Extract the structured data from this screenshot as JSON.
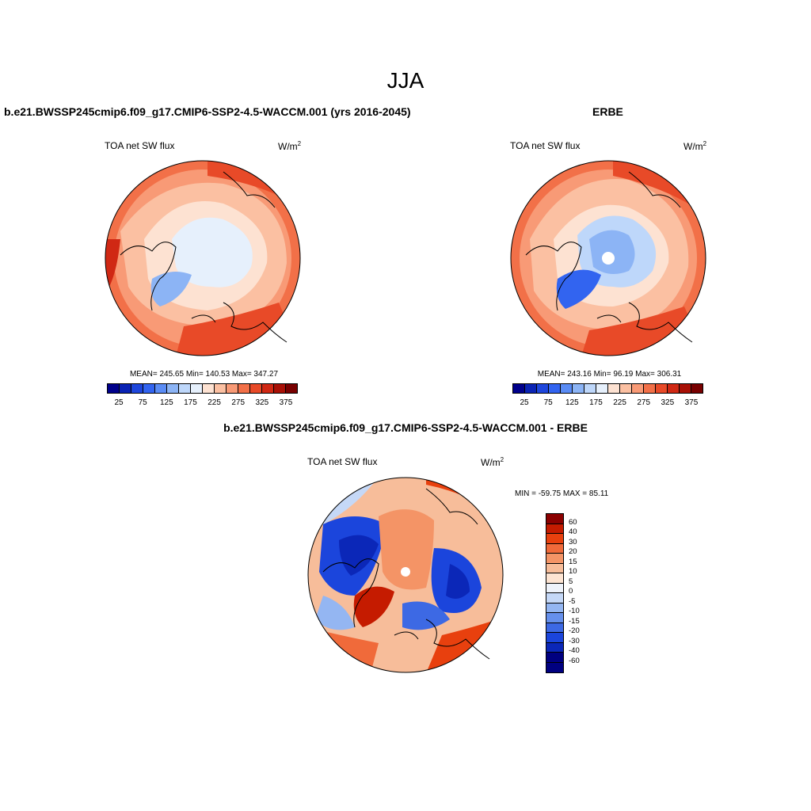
{
  "season": "JJA",
  "panels": [
    {
      "title": "b.e21.BWSSP245cmip6.f09_g17.CMIP6-SSP2-4.5-WACCM.001 (yrs 2016-2045)",
      "variable": "TOA net SW flux",
      "units_base": "W/m",
      "units_sup": "2",
      "stats": "MEAN= 245.65  Min= 140.53  Max= 347.27"
    },
    {
      "title": "ERBE",
      "variable": "TOA net SW flux",
      "units_base": "W/m",
      "units_sup": "2",
      "stats": "MEAN= 243.16  Min=  96.19  Max= 306.31"
    },
    {
      "title": "b.e21.BWSSP245cmip6.f09_g17.CMIP6-SSP2-4.5-WACCM.001 - ERBE",
      "variable": "TOA net SW flux",
      "units_base": "W/m",
      "units_sup": "2",
      "stats": "MIN = -59.75 MAX =  85.11"
    }
  ],
  "colorbar_abs": {
    "colors": [
      "#00008b",
      "#0a23b4",
      "#1e46dc",
      "#3264f0",
      "#5a8cf5",
      "#8cb4f5",
      "#bed7fa",
      "#e6f0fc",
      "#fde2d2",
      "#fbc0a2",
      "#f89a76",
      "#f27048",
      "#e84a28",
      "#d02814",
      "#a81006",
      "#780000"
    ],
    "labels": [
      "25",
      "75",
      "125",
      "175",
      "225",
      "275",
      "325",
      "375"
    ]
  },
  "colorbar_diff": {
    "colors": [
      "#8b0000",
      "#c51b00",
      "#e8400e",
      "#f06a3a",
      "#f49466",
      "#f7bd9a",
      "#fde4d2",
      "#eef3fb",
      "#c5d8f7",
      "#94b6f2",
      "#6690ec",
      "#3d69e4",
      "#1b45dc",
      "#0b27b8",
      "#000080"
    ],
    "labels": [
      "60",
      "40",
      "30",
      "20",
      "15",
      "10",
      "5",
      "0",
      "-5",
      "-10",
      "-15",
      "-20",
      "-30",
      "-40",
      "-60"
    ]
  }
}
